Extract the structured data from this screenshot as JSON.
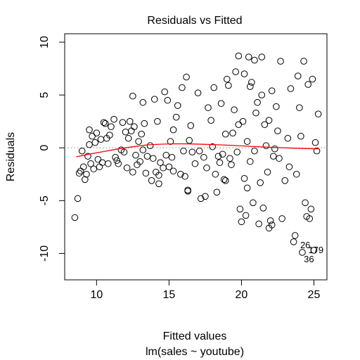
{
  "chart_data": {
    "type": "scatter",
    "title": "Residuals vs Fitted",
    "xlabel": "Fitted values",
    "subtitle": "lm(sales ~ youtube)",
    "ylabel": "Residuals",
    "xlim": [
      7.8,
      25.9
    ],
    "ylim": [
      -12.5,
      10.8
    ],
    "xticks": [
      10,
      15,
      20,
      25
    ],
    "yticks": [
      -10,
      -5,
      0,
      5,
      10
    ],
    "zero_line_color": "#b0b0b0",
    "smooth_color": "#ff0000",
    "point_stroke": "#000000",
    "points": [
      [
        8.5,
        -6.6
      ],
      [
        8.7,
        -4.8
      ],
      [
        8.8,
        -2.4
      ],
      [
        8.9,
        -2.2
      ],
      [
        9.0,
        -0.3
      ],
      [
        9.1,
        -1.8
      ],
      [
        9.2,
        -3.0
      ],
      [
        9.3,
        -2.5
      ],
      [
        9.4,
        -0.8
      ],
      [
        9.5,
        1.7
      ],
      [
        9.5,
        0.3
      ],
      [
        9.6,
        -1.5
      ],
      [
        9.7,
        1.1
      ],
      [
        9.8,
        -2.0
      ],
      [
        9.9,
        0.5
      ],
      [
        10.0,
        1.4
      ],
      [
        10.1,
        -1.1
      ],
      [
        10.2,
        -1.8
      ],
      [
        10.3,
        0.8
      ],
      [
        10.4,
        -1.4
      ],
      [
        10.5,
        2.4
      ],
      [
        10.6,
        2.3
      ],
      [
        10.7,
        0.9
      ],
      [
        10.8,
        -1.5
      ],
      [
        10.9,
        1.2
      ],
      [
        11.0,
        2.0
      ],
      [
        11.2,
        2.7
      ],
      [
        11.3,
        -0.9
      ],
      [
        11.5,
        -1.5
      ],
      [
        11.7,
        -0.2
      ],
      [
        11.8,
        2.4
      ],
      [
        11.9,
        -0.4
      ],
      [
        12.0,
        1.5
      ],
      [
        12.1,
        -1.9
      ],
      [
        12.2,
        0.9
      ],
      [
        12.3,
        2.5
      ],
      [
        12.4,
        1.6
      ],
      [
        12.5,
        4.9
      ],
      [
        12.6,
        2.0
      ],
      [
        12.7,
        -0.7
      ],
      [
        12.8,
        -1.6
      ],
      [
        12.9,
        0.6
      ],
      [
        13.0,
        -1.3
      ],
      [
        13.1,
        1.3
      ],
      [
        13.2,
        4.3
      ],
      [
        13.3,
        2.3
      ],
      [
        13.4,
        -2.4
      ],
      [
        13.5,
        -0.8
      ],
      [
        13.7,
        0.2
      ],
      [
        13.8,
        -3.1
      ],
      [
        13.9,
        -1.0
      ],
      [
        14.0,
        4.6
      ],
      [
        14.1,
        -2.3
      ],
      [
        14.2,
        2.5
      ],
      [
        14.3,
        -2.6
      ],
      [
        14.4,
        -1.4
      ],
      [
        14.6,
        -1.9
      ],
      [
        14.7,
        5.3
      ],
      [
        14.8,
        -0.7
      ],
      [
        14.9,
        4.5
      ],
      [
        15.0,
        -1.8
      ],
      [
        15.1,
        0.6
      ],
      [
        15.2,
        -0.9
      ],
      [
        15.3,
        1.7
      ],
      [
        15.5,
        2.9
      ],
      [
        15.6,
        4.0
      ],
      [
        15.8,
        -2.5
      ],
      [
        15.9,
        5.7
      ],
      [
        16.0,
        -0.3
      ],
      [
        16.1,
        -2.7
      ],
      [
        16.2,
        6.7
      ],
      [
        16.3,
        -4.0
      ],
      [
        16.4,
        0.7
      ],
      [
        16.5,
        2.1
      ],
      [
        16.6,
        -0.4
      ],
      [
        16.8,
        -1.5
      ],
      [
        17.0,
        5.2
      ],
      [
        17.1,
        -0.3
      ],
      [
        17.2,
        -4.8
      ],
      [
        17.4,
        -0.9
      ],
      [
        17.6,
        -1.9
      ],
      [
        17.7,
        3.8
      ],
      [
        17.9,
        2.6
      ],
      [
        18.0,
        0.1
      ],
      [
        18.1,
        5.7
      ],
      [
        18.2,
        -2.5
      ],
      [
        18.3,
        -4.2
      ],
      [
        18.4,
        -0.8
      ],
      [
        18.5,
        -1.4
      ],
      [
        18.6,
        4.2
      ],
      [
        18.7,
        -0.6
      ],
      [
        18.8,
        -3.0
      ],
      [
        18.9,
        -3.1
      ],
      [
        19.0,
        6.5
      ],
      [
        19.1,
        5.9
      ],
      [
        19.2,
        -1.0
      ],
      [
        19.3,
        -1.6
      ],
      [
        19.4,
        1.4
      ],
      [
        19.5,
        3.6
      ],
      [
        19.6,
        7.2
      ],
      [
        19.7,
        -0.4
      ],
      [
        19.8,
        2.2
      ],
      [
        19.9,
        -5.8
      ],
      [
        20.0,
        -7.0
      ],
      [
        20.1,
        2.5
      ],
      [
        20.2,
        -2.9
      ],
      [
        20.3,
        -6.4
      ],
      [
        20.4,
        0.6
      ],
      [
        20.5,
        8.6
      ],
      [
        20.6,
        -1.3
      ],
      [
        20.7,
        6.2
      ],
      [
        20.8,
        -5.2
      ],
      [
        20.9,
        -0.3
      ],
      [
        21.0,
        3.3
      ],
      [
        21.1,
        4.3
      ],
      [
        21.2,
        -7.2
      ],
      [
        21.3,
        -3.3
      ],
      [
        21.4,
        5.0
      ],
      [
        21.5,
        -5.7
      ],
      [
        21.6,
        2.2
      ],
      [
        21.7,
        0.2
      ],
      [
        21.8,
        -2.3
      ],
      [
        21.9,
        -7.6
      ],
      [
        22.0,
        -6.9
      ],
      [
        22.1,
        -7.3
      ],
      [
        22.2,
        -0.8
      ],
      [
        22.3,
        -0.1
      ],
      [
        22.4,
        3.9
      ],
      [
        22.5,
        1.6
      ],
      [
        22.6,
        -1.0
      ],
      [
        22.8,
        -6.7
      ],
      [
        23.0,
        -3.1
      ],
      [
        23.2,
        0.9
      ],
      [
        23.4,
        5.6
      ],
      [
        23.6,
        -8.9
      ],
      [
        23.7,
        -8.3
      ],
      [
        23.8,
        -2.5
      ],
      [
        23.9,
        6.8
      ],
      [
        24.0,
        3.8
      ],
      [
        24.1,
        1.1
      ],
      [
        24.2,
        -9.9
      ],
      [
        24.3,
        8.2
      ],
      [
        24.4,
        -5.2
      ],
      [
        24.5,
        -6.5
      ],
      [
        24.6,
        6.0
      ],
      [
        24.7,
        -6.7
      ],
      [
        24.8,
        -5.8
      ],
      [
        24.9,
        6.5
      ],
      [
        25.0,
        -9.7
      ],
      [
        25.1,
        0.5
      ],
      [
        25.2,
        -0.3
      ],
      [
        25.3,
        3.2
      ],
      [
        19.8,
        8.7
      ],
      [
        20.2,
        7.0
      ],
      [
        20.9,
        8.3
      ],
      [
        21.4,
        8.6
      ],
      [
        22.1,
        5.4
      ],
      [
        22.7,
        8.2
      ],
      [
        20.6,
        5.8
      ],
      [
        23.3,
        -1.8
      ],
      [
        21.9,
        2.6
      ],
      [
        20.4,
        -3.8
      ],
      [
        18.9,
        1.3
      ],
      [
        17.5,
        -4.6
      ],
      [
        16.3,
        -4.1
      ],
      [
        15.3,
        -2.2
      ],
      [
        14.3,
        -3.4
      ],
      [
        13.2,
        -0.2
      ],
      [
        12.5,
        -2.3
      ],
      [
        11.4,
        -1.2
      ]
    ],
    "smooth": [
      [
        8.6,
        -0.85
      ],
      [
        9.5,
        -0.6
      ],
      [
        10.5,
        -0.35
      ],
      [
        11.5,
        -0.1
      ],
      [
        12.5,
        0.1
      ],
      [
        13.5,
        0.28
      ],
      [
        14.5,
        0.35
      ],
      [
        15.5,
        0.38
      ],
      [
        16.5,
        0.37
      ],
      [
        17.5,
        0.33
      ],
      [
        18.5,
        0.28
      ],
      [
        19.5,
        0.22
      ],
      [
        20.5,
        0.15
      ],
      [
        21.5,
        0.08
      ],
      [
        22.5,
        0.02
      ],
      [
        23.5,
        -0.03
      ],
      [
        24.5,
        -0.07
      ],
      [
        25.3,
        -0.1
      ]
    ],
    "point_labels": [
      {
        "x": 24.2,
        "y": -9.9,
        "text": "26"
      },
      {
        "x": 24.5,
        "y": -9.9,
        "text": "36"
      },
      {
        "x": 25.0,
        "y": -9.7,
        "text": "179"
      }
    ]
  }
}
